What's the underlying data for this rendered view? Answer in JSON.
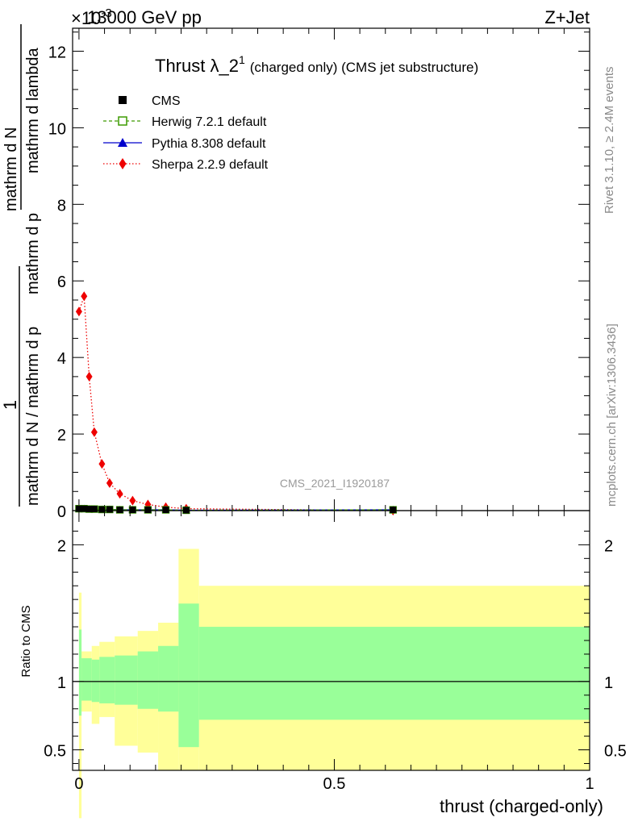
{
  "header": {
    "left": "13000 GeV pp",
    "right": "Z+Jet",
    "exponent_label": "×10",
    "exponent_power": "-3"
  },
  "side_labels": {
    "rivet": "Rivet 3.1.10, ≥ 2.4M events",
    "mcplots": "mcplots.cern.ch [arXiv:1306.3436]"
  },
  "watermark": "CMS_2021_I1920187",
  "title": {
    "main": "Thrust λ_2",
    "superscript": "1",
    "suffix": "(charged only) (CMS jet substructure)"
  },
  "y_label_main": {
    "numerator_top": "1",
    "fraction_bar_text": "mathrm d N / mathrm d p",
    "lower_text": "mathrm d N",
    "lower_line": "mathrm d p",
    "lower_line2": "mathrm d lambda",
    "text_full": "1 / (mathrm d N / mathrm d p_T) · mathrm d²N / (mathrm d p_T mathrm d lambda)"
  },
  "y_label_ratio": "Ratio to CMS",
  "x_label": "thrust (charged-only)",
  "legend": [
    {
      "name": "CMS",
      "color": "#000000",
      "marker": "square",
      "line": "none"
    },
    {
      "name": "Herwig 7.2.1 default",
      "color": "#3d9b00",
      "marker": "open-square",
      "line": "dashed"
    },
    {
      "name": "Pythia 8.308 default",
      "color": "#0000cc",
      "marker": "triangle",
      "line": "solid"
    },
    {
      "name": "Sherpa 2.2.9 default",
      "color": "#ee0000",
      "marker": "diamond",
      "line": "dotted"
    }
  ],
  "chart_data": {
    "type": "line",
    "upper_panel": {
      "xlim": [
        -0.0125,
        1.0
      ],
      "ylim": [
        0,
        0.0126
      ],
      "y_ticks": [
        0,
        2,
        4,
        6,
        8,
        10,
        12
      ],
      "x_ticks": [
        0,
        0.5,
        1
      ],
      "series": [
        {
          "name": "Sherpa 2.2.9 default",
          "x": [
            0.0,
            0.01,
            0.02,
            0.03,
            0.045,
            0.06,
            0.08,
            0.105,
            0.135,
            0.17,
            0.21,
            0.615
          ],
          "y": [
            0.0052,
            0.0056,
            0.0035,
            0.00205,
            0.00122,
            0.00072,
            0.00044,
            0.00026,
            0.00016,
            9e-05,
            5e-05,
            0.0
          ]
        },
        {
          "name": "CMS",
          "x": [
            0.0,
            0.01,
            0.02,
            0.03,
            0.045,
            0.06,
            0.08,
            0.105,
            0.135,
            0.17,
            0.21,
            0.615
          ],
          "y": [
            5e-05,
            5e-05,
            4e-05,
            4e-05,
            3e-05,
            3e-05,
            2e-05,
            2e-05,
            2e-05,
            2e-05,
            1e-05,
            2e-05
          ]
        },
        {
          "name": "Herwig 7.2.1 default",
          "x": [
            0.0,
            0.01,
            0.02,
            0.03,
            0.045,
            0.06,
            0.08,
            0.105,
            0.135,
            0.17,
            0.21,
            0.615
          ],
          "y": [
            5e-05,
            5e-05,
            4e-05,
            4e-05,
            3e-05,
            3e-05,
            2e-05,
            2e-05,
            2e-05,
            2e-05,
            1e-05,
            2e-05
          ]
        },
        {
          "name": "Pythia 8.308 default",
          "x": [
            0.0,
            0.01,
            0.02,
            0.03,
            0.045,
            0.06,
            0.08,
            0.105,
            0.135,
            0.17,
            0.21,
            0.615
          ],
          "y": [
            5e-05,
            5e-05,
            4e-05,
            4e-05,
            3e-05,
            3e-05,
            2e-05,
            2e-05,
            2e-05,
            2e-05,
            1e-05,
            2e-05
          ]
        }
      ]
    },
    "ratio_panel": {
      "ylim": [
        0.35,
        2.25
      ],
      "y_ticks": [
        0.5,
        1,
        2
      ],
      "reference_line": 1,
      "bins": [
        {
          "x0": 0.0,
          "x1": 0.005,
          "green": [
            0.75,
            1.38
          ],
          "yellow": [
            0.0,
            1.65
          ]
        },
        {
          "x0": 0.005,
          "x1": 0.025,
          "green": [
            0.86,
            1.17
          ],
          "yellow": [
            0.78,
            1.22
          ]
        },
        {
          "x0": 0.025,
          "x1": 0.04,
          "green": [
            0.85,
            1.16
          ],
          "yellow": [
            0.69,
            1.26
          ]
        },
        {
          "x0": 0.04,
          "x1": 0.07,
          "green": [
            0.84,
            1.18
          ],
          "yellow": [
            0.74,
            1.29
          ]
        },
        {
          "x0": 0.07,
          "x1": 0.115,
          "green": [
            0.83,
            1.19
          ],
          "yellow": [
            0.53,
            1.33
          ]
        },
        {
          "x0": 0.115,
          "x1": 0.155,
          "green": [
            0.8,
            1.22
          ],
          "yellow": [
            0.48,
            1.37
          ]
        },
        {
          "x0": 0.155,
          "x1": 0.195,
          "green": [
            0.78,
            1.26
          ],
          "yellow": [
            0.35,
            1.43
          ]
        },
        {
          "x0": 0.195,
          "x1": 0.235,
          "green": [
            0.52,
            1.57
          ],
          "yellow": [
            0.35,
            1.97
          ]
        },
        {
          "x0": 0.235,
          "x1": 1.0,
          "green": [
            0.72,
            1.4
          ],
          "yellow": [
            0.35,
            1.7
          ]
        }
      ]
    }
  }
}
